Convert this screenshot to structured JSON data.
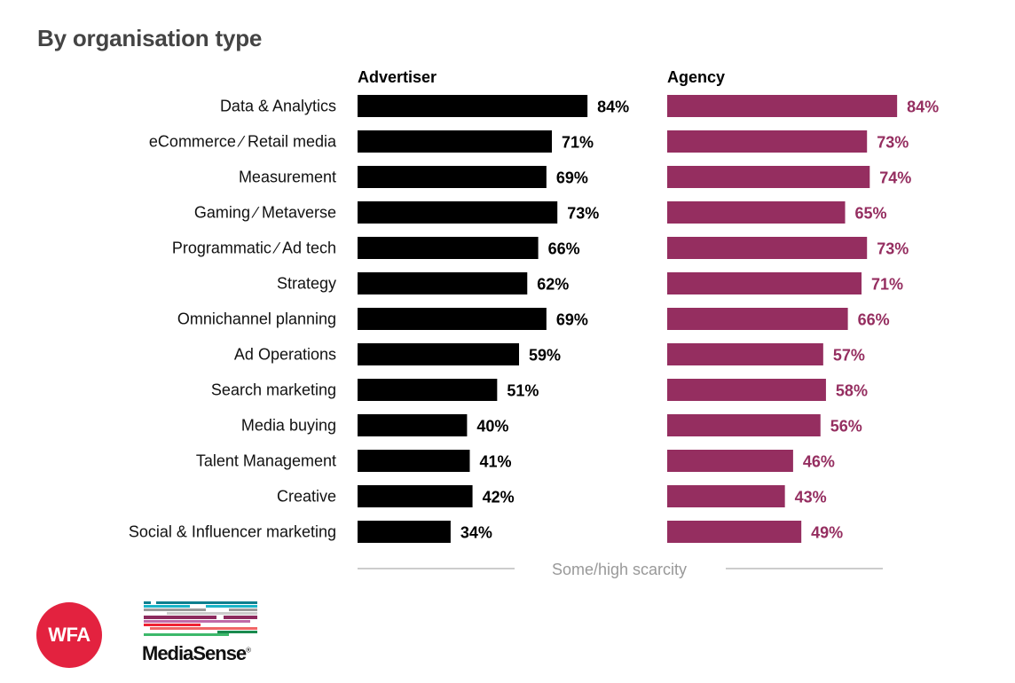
{
  "title": "By organisation type",
  "chart_data": {
    "type": "bar",
    "orientation": "horizontal",
    "title": "By organisation type",
    "xlabel": "Some/high scarcity",
    "ylabel": "",
    "xlim": [
      0,
      100
    ],
    "grid": false,
    "value_suffix": "%",
    "categories": [
      "Data & Analytics",
      "eCommerce ∕ Retail media",
      "Measurement",
      "Gaming ∕ Metaverse",
      "Programmatic ∕ Ad tech",
      "Strategy",
      "Omnichannel planning",
      "Ad Operations",
      "Search marketing",
      "Media buying",
      "Talent Management",
      "Creative",
      "Social & Influencer marketing"
    ],
    "series": [
      {
        "name": "Advertiser",
        "color": "#000000",
        "label_color": "#000000",
        "values": [
          84,
          71,
          69,
          73,
          66,
          62,
          69,
          59,
          51,
          40,
          41,
          42,
          34
        ]
      },
      {
        "name": "Agency",
        "color": "#952e60",
        "label_color": "#952e60",
        "values": [
          84,
          73,
          74,
          65,
          73,
          71,
          66,
          57,
          58,
          56,
          46,
          43,
          49
        ]
      }
    ]
  },
  "logos": {
    "wfa": "WFA",
    "mediasense": "MediaSense",
    "registered": "®"
  }
}
